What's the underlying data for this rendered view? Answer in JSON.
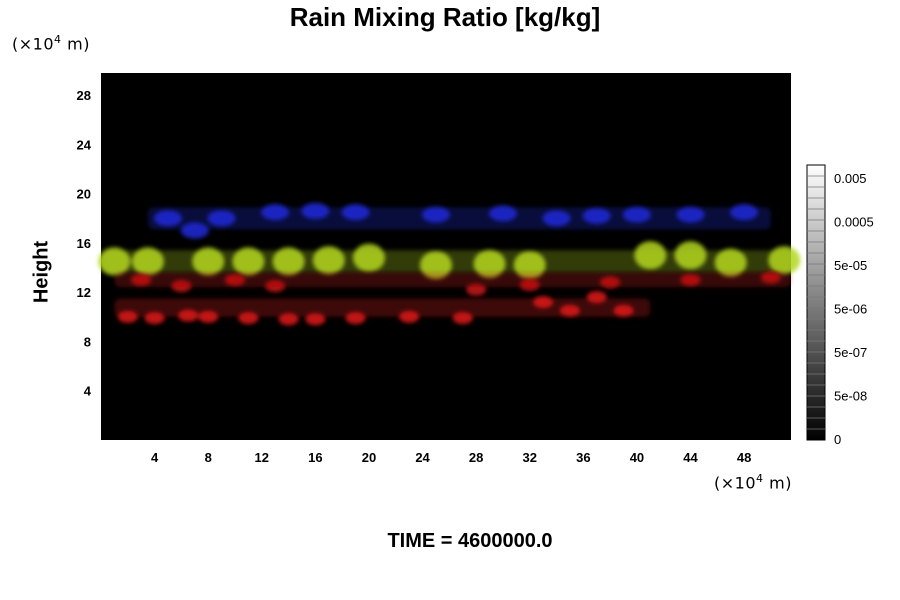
{
  "title": "Rain Mixing Ratio [kg/kg]",
  "y_unit": {
    "prefix": "(×10",
    "exp": "4",
    "suffix": " m)"
  },
  "x_unit": {
    "prefix": "(×10",
    "exp": "4",
    "suffix": " m)"
  },
  "footer": "TIME = 4600000.0",
  "chart_data": {
    "type": "heatmap",
    "title": "Rain Mixing Ratio [kg/kg]",
    "ylabel": "Height",
    "xlabel": "",
    "xlim": [
      0,
      51.5
    ],
    "ylim": [
      0,
      29.8
    ],
    "x_ticks": [
      4,
      8,
      12,
      16,
      20,
      24,
      28,
      32,
      36,
      40,
      44,
      48
    ],
    "y_ticks": [
      4,
      8,
      12,
      16,
      20,
      24,
      28
    ],
    "grid": false,
    "background_color": "#000000",
    "colorbar": {
      "labels": [
        "0",
        "5e-08",
        "5e-07",
        "5e-06",
        "5e-05",
        "0.0005",
        "0.005"
      ],
      "colors": [
        "#000000",
        "#ffffff"
      ]
    },
    "features": [
      {
        "color": "#1e2ad8",
        "x": [
          3.5,
          50
        ],
        "y": [
          16.5,
          19.5
        ],
        "blobs": [
          [
            5,
            18
          ],
          [
            7,
            17
          ],
          [
            9,
            18
          ],
          [
            13,
            18.5
          ],
          [
            16,
            18.6
          ],
          [
            19,
            18.5
          ],
          [
            25,
            18.3
          ],
          [
            30,
            18.4
          ],
          [
            34,
            18
          ],
          [
            37,
            18.2
          ],
          [
            40,
            18.3
          ],
          [
            44,
            18.3
          ],
          [
            48,
            18.5
          ]
        ]
      },
      {
        "color": "#b4d61e",
        "x": [
          0,
          51.5
        ],
        "y": [
          13,
          16
        ],
        "blobs": [
          [
            1,
            14.5
          ],
          [
            3.5,
            14.5
          ],
          [
            8,
            14.5
          ],
          [
            11,
            14.5
          ],
          [
            14,
            14.5
          ],
          [
            17,
            14.6
          ],
          [
            20,
            14.8
          ],
          [
            25,
            14.2
          ],
          [
            29,
            14.3
          ],
          [
            32,
            14.2
          ],
          [
            41,
            15
          ],
          [
            44,
            15
          ],
          [
            47,
            14.4
          ],
          [
            51,
            14.6
          ]
        ]
      },
      {
        "color": "#c81414",
        "x": [
          1,
          51.5
        ],
        "y": [
          12,
          14
        ],
        "blobs": [
          [
            3,
            13
          ],
          [
            6,
            12.5
          ],
          [
            10,
            13
          ],
          [
            13,
            12.5
          ],
          [
            28,
            12.2
          ],
          [
            32,
            12.6
          ],
          [
            38,
            12.8
          ],
          [
            44,
            13
          ],
          [
            50,
            13.2
          ]
        ]
      },
      {
        "color": "#e01a1a",
        "x": [
          1,
          41
        ],
        "y": [
          9.5,
          12
        ],
        "blobs": [
          [
            2,
            10
          ],
          [
            4,
            9.9
          ],
          [
            6.5,
            10.1
          ],
          [
            8,
            10
          ],
          [
            11,
            9.9
          ],
          [
            14,
            9.8
          ],
          [
            16,
            9.8
          ],
          [
            19,
            9.9
          ],
          [
            23,
            10
          ],
          [
            27,
            9.9
          ],
          [
            33,
            11.2
          ],
          [
            35,
            10.5
          ],
          [
            37,
            11.6
          ],
          [
            39,
            10.5
          ]
        ]
      }
    ]
  }
}
